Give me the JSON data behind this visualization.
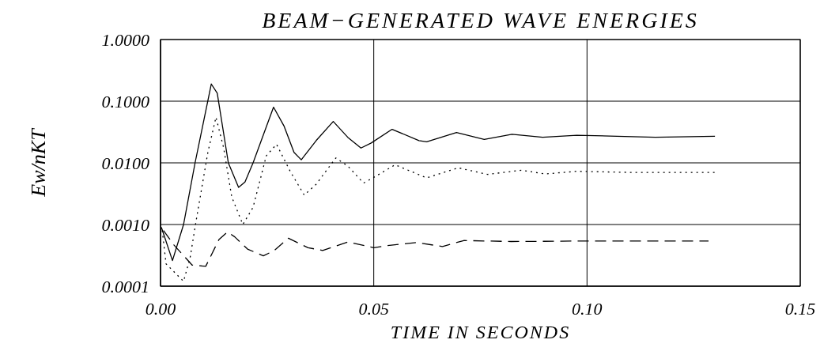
{
  "chart_data": {
    "type": "line",
    "title": "BEAM−GENERATED WAVE ENERGIES",
    "xlabel": "TIME IN SECONDS",
    "ylabel": "Ew/nKT",
    "log": "y",
    "grid": true,
    "legend": false,
    "marker": "none",
    "xlim": [
      0,
      0.15
    ],
    "xticks": [
      {
        "value": 0,
        "label": "0.00"
      },
      {
        "value": 0.05,
        "label": "0.05"
      },
      {
        "value": 0.1,
        "label": "0.10"
      },
      {
        "value": 0.15,
        "label": "0.15"
      }
    ],
    "ylim": [
      0.0001,
      1
    ],
    "yticks": [
      {
        "value": 0.0001,
        "label": "0.0001"
      },
      {
        "value": 0.001,
        "label": "0.0010"
      },
      {
        "value": 0.01,
        "label": "0.0100"
      },
      {
        "value": 0.1,
        "label": "0.1000"
      },
      {
        "value": 1,
        "label": "1.0000"
      }
    ],
    "series": [
      {
        "color": "#000000",
        "line_style": "solid",
        "x": [
          0.0002,
          0.0028,
          0.0054,
          0.0081,
          0.0119,
          0.0133,
          0.0159,
          0.0183,
          0.0198,
          0.0217,
          0.0265,
          0.029,
          0.0313,
          0.033,
          0.0365,
          0.0405,
          0.0439,
          0.047,
          0.0494,
          0.0543,
          0.0606,
          0.0624,
          0.0694,
          0.0759,
          0.0824,
          0.0896,
          0.0976,
          0.107,
          0.116,
          0.13
        ],
        "values": [
          0.0009,
          0.00026,
          0.001,
          0.01,
          0.19,
          0.135,
          0.01,
          0.004,
          0.0049,
          0.01,
          0.08,
          0.039,
          0.0148,
          0.0112,
          0.023,
          0.047,
          0.026,
          0.0174,
          0.021,
          0.035,
          0.023,
          0.022,
          0.031,
          0.024,
          0.029,
          0.026,
          0.028,
          0.027,
          0.026,
          0.027
        ]
      },
      {
        "color": "#000000",
        "line_style": "dotted",
        "x": [
          0.0004,
          0.0013,
          0.0054,
          0.0069,
          0.0083,
          0.0111,
          0.013,
          0.0148,
          0.0167,
          0.0193,
          0.0217,
          0.0248,
          0.0272,
          0.0304,
          0.0337,
          0.0365,
          0.0411,
          0.0439,
          0.0476,
          0.0507,
          0.055,
          0.0624,
          0.0698,
          0.0767,
          0.0846,
          0.0902,
          0.0976,
          0.11,
          0.1305
        ],
        "values": [
          0.0008,
          0.00023,
          0.00012,
          0.00028,
          0.0011,
          0.0148,
          0.055,
          0.0175,
          0.0028,
          0.001,
          0.0019,
          0.013,
          0.02,
          0.0073,
          0.003,
          0.0045,
          0.012,
          0.0089,
          0.0047,
          0.0062,
          0.0093,
          0.0057,
          0.0083,
          0.0065,
          0.0076,
          0.0066,
          0.0073,
          0.007,
          0.007
        ]
      },
      {
        "color": "#000000",
        "line_style": "dashed",
        "x": [
          0.0007,
          0.0031,
          0.0074,
          0.0106,
          0.0137,
          0.0157,
          0.0174,
          0.0204,
          0.0241,
          0.0267,
          0.03,
          0.0346,
          0.038,
          0.0439,
          0.05,
          0.0537,
          0.06,
          0.0661,
          0.0711,
          0.0822,
          0.099,
          0.1285
        ],
        "values": [
          0.0008,
          0.00047,
          0.00022,
          0.00021,
          0.00057,
          0.00076,
          0.00063,
          0.0004,
          0.00031,
          0.00038,
          0.0006,
          0.00042,
          0.00038,
          0.00052,
          0.00042,
          0.00046,
          0.00051,
          0.00044,
          0.00055,
          0.00053,
          0.00054,
          0.00054
        ]
      }
    ]
  }
}
